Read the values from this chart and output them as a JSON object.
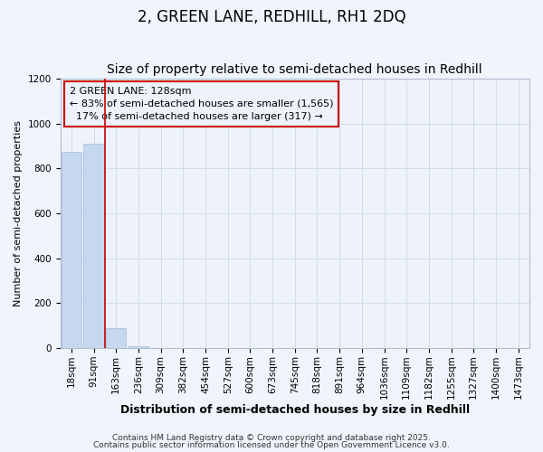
{
  "title": "2, GREEN LANE, REDHILL, RH1 2DQ",
  "subtitle": "Size of property relative to semi-detached houses in Redhill",
  "xlabel": "Distribution of semi-detached houses by size in Redhill",
  "ylabel": "Number of semi-detached properties",
  "bar_labels": [
    "18sqm",
    "91sqm",
    "163sqm",
    "236sqm",
    "309sqm",
    "382sqm",
    "454sqm",
    "527sqm",
    "600sqm",
    "673sqm",
    "745sqm",
    "818sqm",
    "891sqm",
    "964sqm",
    "1036sqm",
    "1109sqm",
    "1182sqm",
    "1255sqm",
    "1327sqm",
    "1400sqm",
    "1473sqm"
  ],
  "bar_values": [
    875,
    910,
    90,
    8,
    2,
    1,
    0,
    0,
    0,
    0,
    0,
    0,
    0,
    0,
    0,
    0,
    0,
    0,
    0,
    0,
    0
  ],
  "bar_color": "#c5d8f0",
  "bar_edge_color": "#a0bcd8",
  "grid_color": "#d0dcea",
  "background_color": "#f0f4fc",
  "plot_bg_color": "#eef2fa",
  "annotation_text": "2 GREEN LANE: 128sqm\n← 83% of semi-detached houses are smaller (1,565)\n  17% of semi-detached houses are larger (317) →",
  "annotation_box_color": "#cc0000",
  "vline_x": 1.5,
  "vline_color": "#cc0000",
  "ylim": [
    0,
    1200
  ],
  "yticks": [
    0,
    200,
    400,
    600,
    800,
    1000,
    1200
  ],
  "footer_line1": "Contains HM Land Registry data © Crown copyright and database right 2025.",
  "footer_line2": "Contains public sector information licensed under the Open Government Licence v3.0.",
  "title_fontsize": 12,
  "subtitle_fontsize": 10,
  "xlabel_fontsize": 9,
  "ylabel_fontsize": 8,
  "tick_fontsize": 7.5,
  "footer_fontsize": 6.5,
  "annotation_fontsize": 8
}
